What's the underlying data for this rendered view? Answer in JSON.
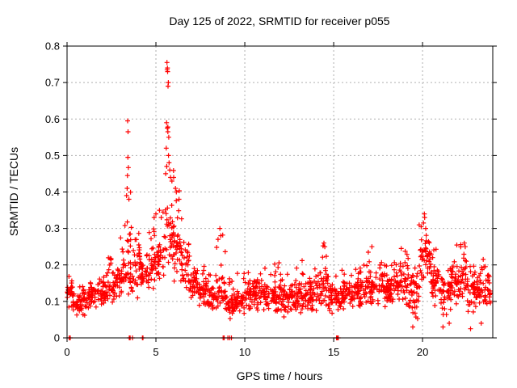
{
  "chart_data": {
    "type": "scatter",
    "title": "Day 125 of 2022, SRMTID for receiver p055",
    "xlabel": "GPS time / hours",
    "ylabel": "SRMTID / TECUs",
    "xlim": [
      0,
      23.95
    ],
    "ylim": [
      0,
      0.8
    ],
    "xticks": {
      "values": [
        0,
        5,
        10,
        15,
        20
      ],
      "labels": [
        "0",
        "5",
        "10",
        "15",
        "20"
      ]
    },
    "yticks": {
      "values": [
        0,
        0.1,
        0.2,
        0.3,
        0.4,
        0.5,
        0.6,
        0.7,
        0.8
      ],
      "labels": [
        "0",
        "0.1",
        "0.2",
        "0.3",
        "0.4",
        "0.5",
        "0.6",
        "0.7",
        "0.8"
      ]
    },
    "grid": "dotted",
    "grid_color": "#b0b0b0",
    "marker": "plus",
    "marker_color": "#ff0000",
    "points_per_hour": 72,
    "envelope_bins": [
      [
        0.0,
        0.3,
        0.08,
        0.12,
        0.17
      ],
      [
        0.3,
        0.7,
        0.05,
        0.09,
        0.15
      ],
      [
        0.7,
        1.2,
        0.05,
        0.1,
        0.15
      ],
      [
        1.2,
        1.7,
        0.06,
        0.11,
        0.17
      ],
      [
        1.7,
        2.2,
        0.07,
        0.12,
        0.18
      ],
      [
        2.2,
        2.7,
        0.08,
        0.14,
        0.22
      ],
      [
        2.7,
        3.1,
        0.09,
        0.16,
        0.3
      ],
      [
        3.1,
        3.6,
        0.1,
        0.2,
        0.4
      ],
      [
        3.6,
        4.1,
        0.1,
        0.2,
        0.33
      ],
      [
        4.1,
        4.6,
        0.12,
        0.18,
        0.28
      ],
      [
        4.6,
        5.1,
        0.13,
        0.19,
        0.3
      ],
      [
        5.1,
        5.5,
        0.14,
        0.22,
        0.36
      ],
      [
        5.5,
        6.0,
        0.15,
        0.28,
        0.58
      ],
      [
        6.0,
        6.4,
        0.14,
        0.24,
        0.42
      ],
      [
        6.4,
        6.9,
        0.12,
        0.2,
        0.33
      ],
      [
        6.9,
        7.4,
        0.1,
        0.15,
        0.26
      ],
      [
        7.4,
        7.9,
        0.08,
        0.13,
        0.22
      ],
      [
        7.9,
        8.4,
        0.07,
        0.11,
        0.2
      ],
      [
        8.4,
        8.9,
        0.06,
        0.12,
        0.29
      ],
      [
        8.9,
        9.4,
        0.05,
        0.09,
        0.17
      ],
      [
        9.4,
        10.0,
        0.06,
        0.1,
        0.18
      ],
      [
        10.0,
        10.6,
        0.07,
        0.12,
        0.21
      ],
      [
        10.6,
        11.2,
        0.06,
        0.12,
        0.23
      ],
      [
        11.2,
        12.0,
        0.06,
        0.11,
        0.21
      ],
      [
        12.0,
        12.8,
        0.05,
        0.11,
        0.2
      ],
      [
        12.8,
        13.5,
        0.06,
        0.11,
        0.23
      ],
      [
        13.5,
        14.2,
        0.06,
        0.12,
        0.21
      ],
      [
        14.2,
        14.7,
        0.07,
        0.14,
        0.26
      ],
      [
        14.7,
        15.4,
        0.06,
        0.11,
        0.18
      ],
      [
        15.4,
        16.1,
        0.07,
        0.12,
        0.19
      ],
      [
        16.1,
        16.8,
        0.08,
        0.13,
        0.2
      ],
      [
        16.8,
        17.4,
        0.08,
        0.14,
        0.24
      ],
      [
        17.4,
        18.4,
        0.08,
        0.13,
        0.21
      ],
      [
        18.4,
        19.2,
        0.08,
        0.15,
        0.25
      ],
      [
        19.2,
        19.8,
        0.04,
        0.12,
        0.22
      ],
      [
        19.8,
        20.5,
        0.1,
        0.21,
        0.32
      ],
      [
        20.5,
        21.0,
        0.08,
        0.15,
        0.25
      ],
      [
        21.0,
        21.6,
        0.04,
        0.12,
        0.2
      ],
      [
        21.6,
        22.5,
        0.08,
        0.15,
        0.26
      ],
      [
        22.5,
        23.0,
        0.04,
        0.12,
        0.2
      ],
      [
        23.0,
        23.85,
        0.06,
        0.13,
        0.22
      ]
    ],
    "outlier_points": [
      [
        3.35,
        0.39
      ],
      [
        3.38,
        0.41
      ],
      [
        3.4,
        0.445
      ],
      [
        3.41,
        0.595
      ],
      [
        3.42,
        0.495
      ],
      [
        3.43,
        0.565
      ],
      [
        3.45,
        0.467
      ],
      [
        3.48,
        0.38
      ],
      [
        4.9,
        0.33
      ],
      [
        5.0,
        0.34
      ],
      [
        5.2,
        0.35
      ],
      [
        5.3,
        0.33
      ],
      [
        5.55,
        0.45
      ],
      [
        5.58,
        0.52
      ],
      [
        5.6,
        0.59
      ],
      [
        5.61,
        0.47
      ],
      [
        5.62,
        0.755
      ],
      [
        5.63,
        0.735
      ],
      [
        5.64,
        0.575
      ],
      [
        5.65,
        0.74
      ],
      [
        5.66,
        0.73
      ],
      [
        5.67,
        0.565
      ],
      [
        5.68,
        0.69
      ],
      [
        5.7,
        0.7
      ],
      [
        5.71,
        0.5
      ],
      [
        5.72,
        0.55
      ],
      [
        5.74,
        0.48
      ],
      [
        5.78,
        0.46
      ],
      [
        5.82,
        0.44
      ],
      [
        5.9,
        0.43
      ],
      [
        6.0,
        0.44
      ],
      [
        6.1,
        0.41
      ],
      [
        6.15,
        0.4
      ],
      [
        6.3,
        0.38
      ],
      [
        8.6,
        0.3
      ],
      [
        8.65,
        0.28
      ],
      [
        14.45,
        0.26
      ],
      [
        14.5,
        0.25
      ],
      [
        17.15,
        0.25
      ],
      [
        18.8,
        0.245
      ],
      [
        20.05,
        0.315
      ],
      [
        20.1,
        0.34
      ],
      [
        20.12,
        0.33
      ],
      [
        20.18,
        0.3
      ],
      [
        22.35,
        0.26
      ],
      [
        22.4,
        0.25
      ],
      [
        19.45,
        0.03
      ],
      [
        21.15,
        0.03
      ],
      [
        21.5,
        0.04
      ],
      [
        22.7,
        0.025
      ],
      [
        23.3,
        0.04
      ]
    ],
    "zero_points": [
      0.12,
      0.18,
      3.5,
      3.55,
      3.68,
      4.24,
      4.27,
      8.78,
      8.84,
      9.05,
      9.15,
      9.25,
      15.16,
      15.19,
      15.21,
      15.23,
      15.26
    ]
  }
}
